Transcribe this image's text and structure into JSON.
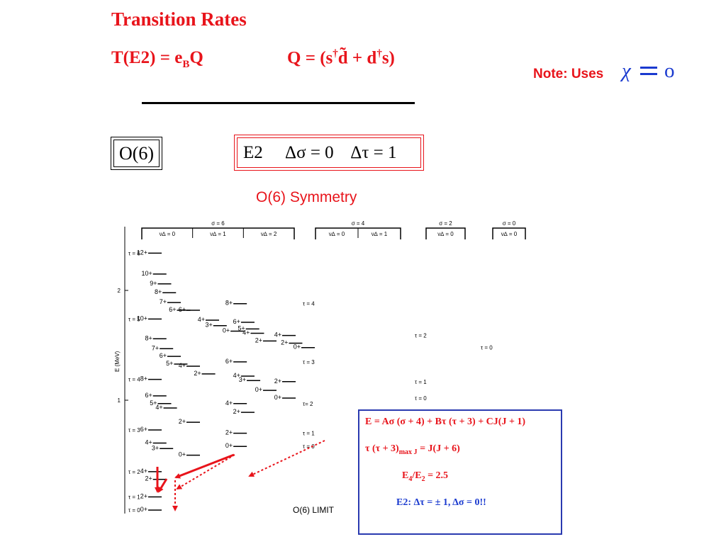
{
  "title": "Transition Rates",
  "eq_left": {
    "main": "T(E2) = e",
    "sub": "B",
    "tail": "Q"
  },
  "eq_right": {
    "p1": "Q = (s",
    "sup1": "†",
    "p2": "d̃ + d",
    "sup2": "†",
    "p3": "s)"
  },
  "note": {
    "label": "Note: Uses",
    "chi": "χ",
    "omicron": "o"
  },
  "box_o6": "O(6)",
  "box_e2": "E2     Δσ = 0    Δτ = 1",
  "symmetry_title": "O(6) Symmetry",
  "limit_label": "O(6) LIMIT",
  "axis": {
    "label": "E (MeV)",
    "ticks": [
      {
        "value": 2,
        "label": "2"
      },
      {
        "value": 1,
        "label": "1"
      }
    ]
  },
  "groups": [
    {
      "header": "σ = 6",
      "sub": [
        "ν∆ = 0",
        "ν∆ = 1",
        "ν∆ = 2"
      ]
    },
    {
      "header": "σ = 4",
      "sub": [
        "ν∆ = 0",
        "ν∆ = 1"
      ]
    },
    {
      "header": "σ = 2",
      "sub": [
        "ν∆ = 0"
      ]
    },
    {
      "header": "σ = 0",
      "sub": [
        "ν∆ = 0"
      ]
    }
  ],
  "tau_labels": [
    {
      "text": "τ = 6",
      "group": 0,
      "E": 2.32
    },
    {
      "text": "τ = 5",
      "group": 0,
      "E": 1.72
    },
    {
      "text": "τ = 4",
      "group": 0,
      "E": 1.17
    },
    {
      "text": "τ = 3",
      "group": 0,
      "E": 0.71
    },
    {
      "text": "τ = 2",
      "group": 0,
      "E": 0.33
    },
    {
      "text": "τ = 1",
      "group": 0,
      "E": 0.1
    },
    {
      "text": "τ = 0",
      "group": 0,
      "E": -0.02
    },
    {
      "text": "τ = 4",
      "group": 1,
      "E": 1.86
    },
    {
      "text": "τ = 3",
      "group": 1,
      "E": 1.33
    },
    {
      "text": "τ= 2",
      "group": 1,
      "E": 0.95
    },
    {
      "text": "τ = 1",
      "group": 1,
      "E": 0.68
    },
    {
      "text": "τ = 0",
      "group": 1,
      "E": 0.56
    },
    {
      "text": "τ = 2",
      "group": 2,
      "E": 1.57
    },
    {
      "text": "τ = 1",
      "group": 2,
      "E": 1.15
    },
    {
      "text": "τ = 0",
      "group": 2,
      "E": 1.0
    },
    {
      "text": "τ = 0",
      "group": 3,
      "E": 1.46
    }
  ],
  "levels": [
    {
      "J": "12+",
      "col": 0.0,
      "E": 2.32
    },
    {
      "J": "10+",
      "col": 0.25,
      "E": 2.13
    },
    {
      "J": "9+",
      "col": 0.5,
      "E": 2.04
    },
    {
      "J": "8+",
      "col": 0.75,
      "E": 1.96
    },
    {
      "J": "7+",
      "col": 1.0,
      "E": 1.87
    },
    {
      "J": "6+",
      "col": 1.5,
      "E": 1.8
    },
    {
      "J": "6+",
      "col": 2.0,
      "E": 1.8
    },
    {
      "J": "4+",
      "col": 3.0,
      "E": 1.71
    },
    {
      "J": "3+",
      "col": 3.4,
      "E": 1.66
    },
    {
      "J": "0+",
      "col": 4.3,
      "E": 1.61
    },
    {
      "J": "10+",
      "col": 0.0,
      "E": 1.72
    },
    {
      "J": "8+",
      "col": 0.25,
      "E": 1.54
    },
    {
      "J": "7+",
      "col": 0.6,
      "E": 1.45
    },
    {
      "J": "6+",
      "col": 1.0,
      "E": 1.38
    },
    {
      "J": "5+",
      "col": 1.35,
      "E": 1.31
    },
    {
      "J": "4+",
      "col": 2.0,
      "E": 1.29
    },
    {
      "J": "2+",
      "col": 2.8,
      "E": 1.22
    },
    {
      "J": "8+",
      "col": 0.0,
      "E": 1.17
    },
    {
      "J": "6+",
      "col": 0.25,
      "E": 1.02
    },
    {
      "J": "5+",
      "col": 0.5,
      "E": 0.95
    },
    {
      "J": "4+",
      "col": 0.8,
      "E": 0.91
    },
    {
      "J": "2+",
      "col": 2.0,
      "E": 0.78
    },
    {
      "J": "6+",
      "col": 0.0,
      "E": 0.71
    },
    {
      "J": "4+",
      "col": 0.25,
      "E": 0.59
    },
    {
      "J": "3+",
      "col": 0.6,
      "E": 0.54
    },
    {
      "J": "0+",
      "col": 2.0,
      "E": 0.48
    },
    {
      "J": "4+",
      "col": 0.0,
      "E": 0.33
    },
    {
      "J": "2+",
      "col": 0.25,
      "E": 0.26
    },
    {
      "J": "2+",
      "col": 0.0,
      "E": 0.1
    },
    {
      "J": "0+",
      "col": 0.0,
      "E": -0.02
    },
    {
      "J": "8+",
      "col": 4.45,
      "E": 1.86
    },
    {
      "J": "6+",
      "col": 4.85,
      "E": 1.69
    },
    {
      "J": "5+",
      "col": 5.1,
      "E": 1.63
    },
    {
      "J": "4+",
      "col": 5.35,
      "E": 1.59
    },
    {
      "J": "2+",
      "col": 6.0,
      "E": 1.52
    },
    {
      "J": "6+",
      "col": 4.45,
      "E": 1.33
    },
    {
      "J": "4+",
      "col": 4.85,
      "E": 1.2
    },
    {
      "J": "3+",
      "col": 5.15,
      "E": 1.16
    },
    {
      "J": "0+",
      "col": 6.0,
      "E": 1.07
    },
    {
      "J": "4+",
      "col": 4.45,
      "E": 0.95
    },
    {
      "J": "2+",
      "col": 4.85,
      "E": 0.87
    },
    {
      "J": "2+",
      "col": 4.45,
      "E": 0.68
    },
    {
      "J": "0+",
      "col": 4.45,
      "E": 0.56
    },
    {
      "J": "4+",
      "col": 7.0,
      "E": 1.57
    },
    {
      "J": "2+",
      "col": 7.35,
      "E": 1.5
    },
    {
      "J": "2+",
      "col": 7.0,
      "E": 1.15
    },
    {
      "J": "0+",
      "col": 7.0,
      "E": 1.0
    },
    {
      "J": "0+",
      "col": 8.0,
      "E": 1.46
    }
  ],
  "infobox": {
    "line1": "E = Aσ (σ + 4) + Bτ (τ + 3) + CJ(J + 1)",
    "line2_main": "τ (τ + 3)",
    "line2_sub": "max J",
    "line2_tail": "  = J(J + 6)",
    "line3_main": "E",
    "line3_sub1": "4",
    "line3_mid": "/E",
    "line3_sub2": "2",
    "line3_tail": " = 2.5",
    "line4": "E2: Δτ = ± 1,  Δσ = 0!!"
  },
  "colors": {
    "accent_red": "#e8141b",
    "accent_blue": "#1a3acf",
    "box_blue": "#2a3ab0"
  }
}
